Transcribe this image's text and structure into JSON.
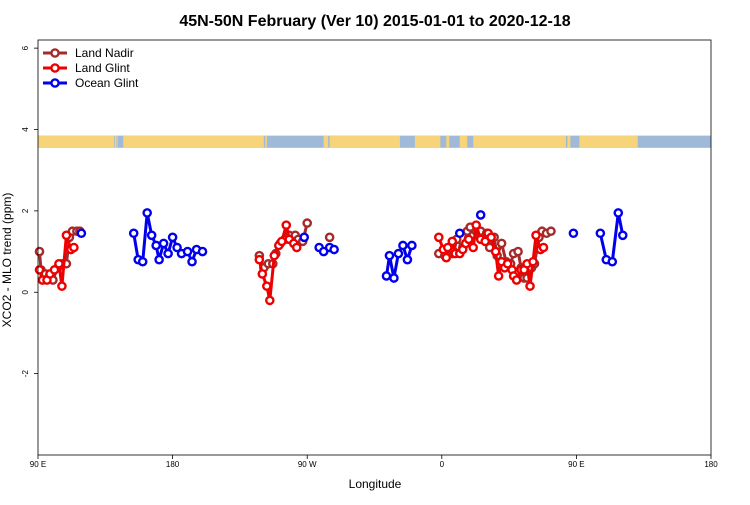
{
  "chart_data": {
    "type": "line",
    "title": "45N-50N February (Ver 10)   2015-01-01 to 2020-12-18",
    "xlabel": "Longitude",
    "ylabel": "XCO2 - MLO trend (ppm)",
    "xlim": [
      90,
      540
    ],
    "ylim": [
      -4,
      6.2
    ],
    "x_ticks": [
      {
        "value": 90,
        "label": "90 E"
      },
      {
        "value": 180,
        "label": "180"
      },
      {
        "value": 270,
        "label": "90 W"
      },
      {
        "value": 360,
        "label": "0"
      },
      {
        "value": 450,
        "label": "90 E"
      },
      {
        "value": 540,
        "label": "180"
      }
    ],
    "y_ticks": [
      {
        "value": -2,
        "label": "-2"
      },
      {
        "value": 0,
        "label": "0"
      },
      {
        "value": 2,
        "label": "2"
      },
      {
        "value": 4,
        "label": "4"
      },
      {
        "value": 6,
        "label": "6"
      }
    ],
    "legend_position": "top-left",
    "land_ocean_band": {
      "y_range": [
        3.55,
        3.85
      ],
      "land_color": "#f7d47a",
      "ocean_color": "#9fb9d9",
      "land_segments": [
        [
          90,
          141
        ],
        [
          141.5,
          142
        ],
        [
          142.5,
          143
        ],
        [
          147,
          241
        ],
        [
          242,
          243
        ],
        [
          281,
          284
        ],
        [
          285,
          332
        ],
        [
          342,
          359
        ],
        [
          363,
          365
        ],
        [
          372,
          377
        ],
        [
          381,
          443
        ],
        [
          444,
          446
        ],
        [
          452,
          491
        ]
      ]
    },
    "series": [
      {
        "name": "Land Nadir",
        "color": "#a52a2a",
        "points": [
          [
            91,
            1.0
          ],
          [
            92,
            0.55
          ],
          [
            95,
            0.45
          ],
          [
            97,
            0.35
          ],
          [
            100,
            0.3
          ],
          [
            103,
            0.6
          ],
          [
            106,
            0.7
          ],
          [
            109,
            0.7
          ],
          [
            111,
            1.35
          ],
          [
            113,
            1.5
          ],
          [
            116,
            1.5
          ],
          [
            118,
            1.5
          ],
          null,
          [
            238,
            0.9
          ],
          [
            241,
            0.6
          ],
          [
            244,
            0.7
          ],
          [
            247,
            0.7
          ],
          [
            249,
            0.95
          ],
          [
            252,
            1.2
          ],
          [
            255,
            1.3
          ],
          [
            258,
            1.4
          ],
          [
            262,
            1.4
          ],
          [
            264,
            1.3
          ],
          [
            267,
            1.25
          ],
          [
            270,
            1.7
          ],
          null,
          [
            285,
            1.35
          ],
          null,
          [
            358,
            0.95
          ],
          [
            362,
            0.9
          ],
          [
            364,
            1.0
          ],
          [
            367,
            0.95
          ],
          [
            368,
            1.0
          ],
          [
            370,
            1.3
          ],
          [
            374,
            1.1
          ],
          [
            377,
            1.5
          ],
          [
            379,
            1.6
          ],
          [
            381,
            1.4
          ],
          [
            383,
            1.5
          ],
          [
            386,
            1.5
          ],
          [
            390,
            1.45
          ],
          [
            392,
            1.1
          ],
          [
            395,
            1.35
          ],
          [
            397,
            0.9
          ],
          [
            400,
            1.2
          ],
          [
            403,
            0.75
          ],
          [
            406,
            0.7
          ],
          [
            408,
            0.95
          ],
          [
            411,
            1.0
          ],
          [
            413,
            0.6
          ],
          [
            415,
            0.35
          ],
          [
            417,
            0.35
          ],
          [
            420,
            0.6
          ],
          [
            422,
            0.7
          ],
          [
            425,
            1.35
          ],
          [
            427,
            1.5
          ],
          [
            430,
            1.45
          ],
          [
            433,
            1.5
          ]
        ]
      },
      {
        "name": "Land Glint",
        "color": "#ee0000",
        "points": [
          [
            91,
            0.55
          ],
          [
            93,
            0.3
          ],
          [
            96,
            0.3
          ],
          [
            98,
            0.45
          ],
          [
            101,
            0.55
          ],
          [
            104,
            0.7
          ],
          [
            106,
            0.15
          ],
          [
            109,
            1.4
          ],
          [
            112,
            1.05
          ],
          [
            114,
            1.1
          ],
          null,
          [
            238,
            0.8
          ],
          [
            240,
            0.45
          ],
          [
            243,
            0.15
          ],
          [
            245,
            -0.2
          ],
          [
            248,
            0.9
          ],
          [
            251,
            1.15
          ],
          [
            253,
            1.25
          ],
          [
            256,
            1.65
          ],
          [
            258,
            1.3
          ],
          [
            261,
            1.2
          ],
          [
            263,
            1.1
          ],
          null,
          [
            358,
            1.35
          ],
          [
            361,
            1.05
          ],
          [
            363,
            0.85
          ],
          [
            364,
            1.1
          ],
          [
            367,
            1.25
          ],
          [
            369,
            0.95
          ],
          [
            372,
            0.95
          ],
          [
            374,
            1.05
          ],
          [
            376,
            1.2
          ],
          [
            378,
            1.3
          ],
          [
            381,
            1.1
          ],
          [
            383,
            1.65
          ],
          [
            386,
            1.3
          ],
          [
            389,
            1.25
          ],
          [
            391,
            1.45
          ],
          [
            393,
            1.35
          ],
          [
            396,
            1.0
          ],
          [
            398,
            0.4
          ],
          [
            400,
            0.75
          ],
          [
            402,
            0.6
          ],
          [
            404,
            0.7
          ],
          [
            407,
            0.55
          ],
          [
            408,
            0.4
          ],
          [
            410,
            0.3
          ],
          [
            413,
            0.55
          ],
          [
            415,
            0.55
          ],
          [
            417,
            0.7
          ],
          [
            419,
            0.15
          ],
          [
            421,
            0.75
          ],
          [
            423,
            1.4
          ],
          [
            426,
            1.05
          ],
          [
            428,
            1.1
          ]
        ]
      },
      {
        "name": "Ocean Glint",
        "color": "#0000ee",
        "points": [
          [
            119,
            1.45
          ],
          null,
          [
            154,
            1.45
          ],
          [
            157,
            0.8
          ],
          [
            160,
            0.75
          ],
          [
            163,
            1.95
          ],
          [
            166,
            1.4
          ],
          [
            169,
            1.15
          ],
          [
            171,
            0.8
          ],
          [
            174,
            1.2
          ],
          [
            177,
            0.95
          ],
          [
            180,
            1.35
          ],
          [
            183,
            1.1
          ],
          [
            186,
            0.95
          ],
          [
            190,
            1.0
          ],
          [
            193,
            0.75
          ],
          [
            196,
            1.05
          ],
          [
            200,
            1.0
          ],
          null,
          [
            268,
            1.35
          ],
          null,
          [
            278,
            1.1
          ],
          [
            281,
            1.0
          ],
          [
            285,
            1.1
          ],
          [
            288,
            1.05
          ],
          null,
          [
            323,
            0.4
          ],
          [
            325,
            0.9
          ],
          [
            328,
            0.35
          ],
          [
            331,
            0.95
          ],
          [
            334,
            1.15
          ],
          [
            337,
            0.8
          ],
          [
            340,
            1.15
          ],
          null,
          [
            372,
            1.45
          ],
          null,
          [
            386,
            1.9
          ],
          null,
          [
            448,
            1.45
          ],
          null,
          [
            466,
            1.45
          ],
          [
            470,
            0.8
          ],
          [
            474,
            0.75
          ],
          [
            478,
            1.95
          ],
          [
            481,
            1.4
          ]
        ]
      }
    ]
  }
}
